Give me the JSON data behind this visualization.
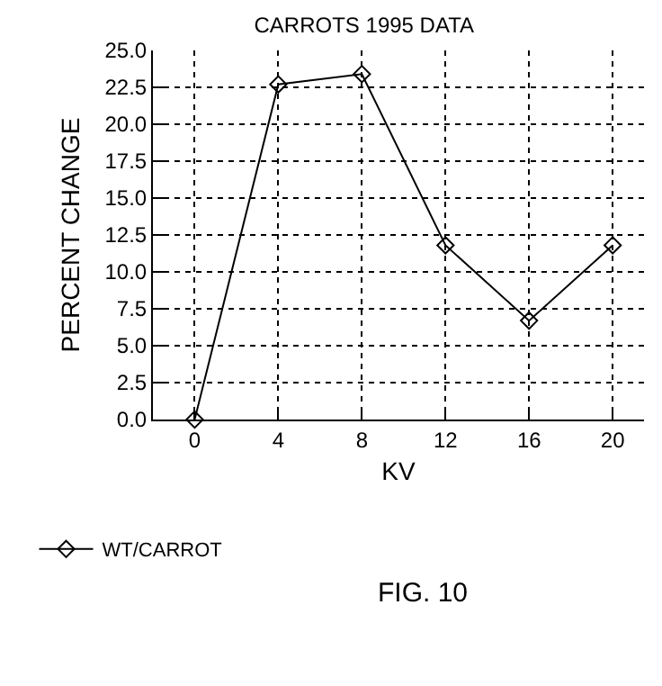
{
  "chart_data": {
    "type": "line",
    "title": "CARROTS 1995 DATA",
    "xlabel": "KV",
    "ylabel": "PERCENT CHANGE",
    "x": [
      0,
      4,
      8,
      12,
      16,
      20
    ],
    "series": [
      {
        "name": "WT/CARROT",
        "color": "#000000",
        "values": [
          0,
          22.7,
          23.4,
          11.8,
          6.7,
          11.8
        ]
      }
    ],
    "xlim": [
      -2,
      21.5
    ],
    "xticks": [
      0,
      4,
      8,
      12,
      16,
      20
    ],
    "ylim": [
      0,
      25
    ],
    "yticks": [
      {
        "value": 0,
        "label": "0.0"
      },
      {
        "value": 2.5,
        "label": "2.5"
      },
      {
        "value": 5,
        "label": "5.0"
      },
      {
        "value": 7.5,
        "label": "7.5"
      },
      {
        "value": 10,
        "label": "10.0"
      },
      {
        "value": 12.5,
        "label": "12.5"
      },
      {
        "value": 15,
        "label": "15.0"
      },
      {
        "value": 17.5,
        "label": "17.5"
      },
      {
        "value": 20,
        "label": "20.0"
      },
      {
        "value": 22.5,
        "label": "22.5"
      },
      {
        "value": 25,
        "label": "25.0"
      }
    ],
    "grid": true,
    "legend": "bottom left",
    "marker": "diamond",
    "line_style": "solid",
    "annotations": [
      "FIG. 10"
    ]
  }
}
